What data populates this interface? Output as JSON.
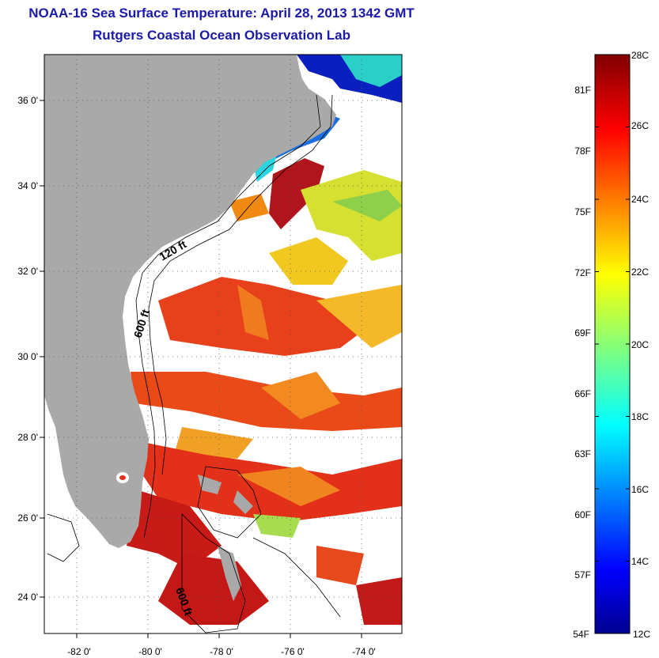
{
  "title_line1": "NOAA-16 Sea Surface Temperature:  April 28, 2013 1342 GMT",
  "title_line2": "Rutgers Coastal Ocean Observation Lab",
  "map": {
    "lon_range": [
      -83,
      -73
    ],
    "lat_range": [
      23,
      37
    ],
    "lon_ticks": [
      {
        "value": -82,
        "label": "-82 0'"
      },
      {
        "value": -80,
        "label": "-80 0'"
      },
      {
        "value": -78,
        "label": "-78 0'"
      },
      {
        "value": -76,
        "label": "-76 0'"
      },
      {
        "value": -74,
        "label": "-74 0'"
      }
    ],
    "lat_ticks": [
      {
        "value": 24,
        "label": "24 0'"
      },
      {
        "value": 26,
        "label": "26 0'"
      },
      {
        "value": 28,
        "label": "28 0'"
      },
      {
        "value": 30,
        "label": "30 0'"
      },
      {
        "value": 32,
        "label": "32 0'"
      },
      {
        "value": 34,
        "label": "34 0'"
      },
      {
        "value": 36,
        "label": "36 0'"
      }
    ],
    "contour_labels": [
      "120 ft",
      "600 ft",
      "600 ft"
    ],
    "land_color": "#a9a9a9"
  },
  "colorbar": {
    "range_c": [
      12,
      28
    ],
    "celsius_labels": [
      "28C",
      "26C",
      "24C",
      "22C",
      "20C",
      "18C",
      "16C",
      "14C",
      "12C"
    ],
    "fahrenheit_labels": [
      "81F",
      "78F",
      "75F",
      "72F",
      "69F",
      "66F",
      "63F",
      "60F",
      "57F",
      "54F"
    ]
  }
}
